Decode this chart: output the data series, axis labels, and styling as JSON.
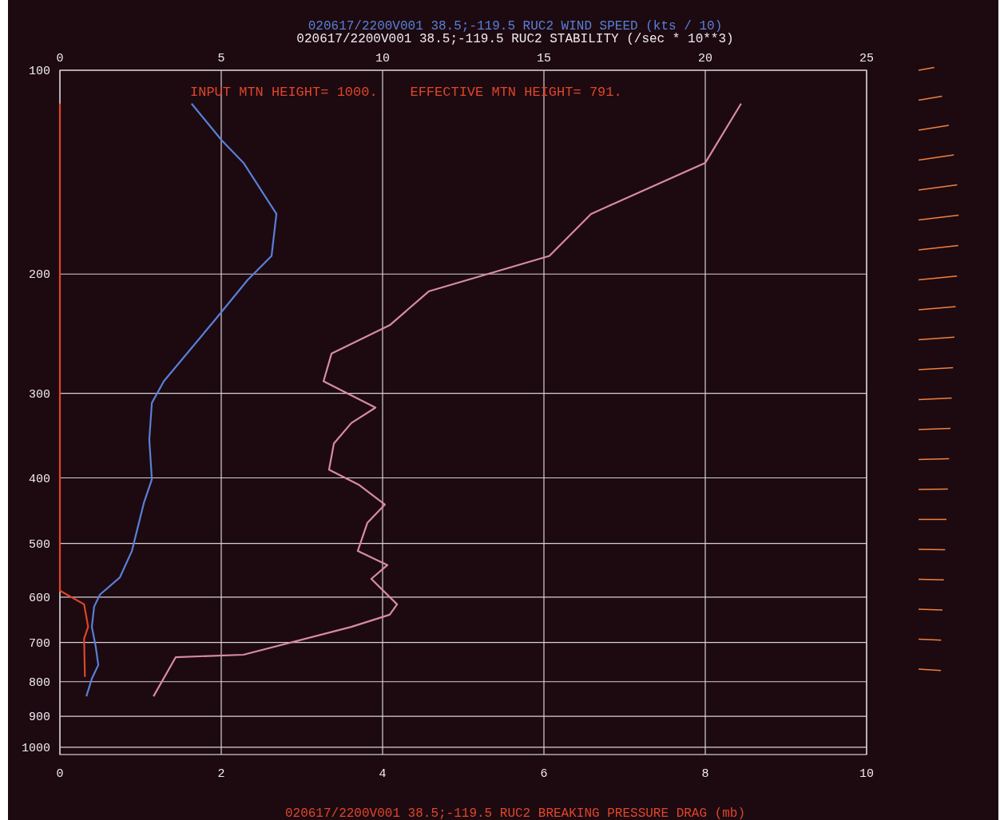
{
  "chart_data": {
    "type": "line",
    "title": "020617/2200V001 38.5;-119.5 RUC2 WIND SPEED (kts / 10)",
    "subtitle": "020617/2200V001 38.5;-119.5 RUC2 STABILITY (/sec * 10**3)",
    "xlabel": "020617/2200V001 38.5;-119.5 RUC2 BREAKING PRESSURE DRAG (mb)",
    "annotations": [
      "INPUT MTN HEIGHT= 1000.    EFFECTIVE MTN HEIGHT= 791."
    ],
    "xlim": [
      0,
      10
    ],
    "xticks": [
      0,
      2,
      4,
      6,
      8,
      10
    ],
    "x2lim": [
      0,
      25
    ],
    "x2ticks": [
      0,
      5,
      10,
      15,
      20,
      25
    ],
    "ylim": [
      1025,
      100
    ],
    "yticks": [
      100,
      200,
      300,
      400,
      500,
      600,
      700,
      800,
      900,
      1000
    ],
    "log": "y",
    "grid": true,
    "series": [
      {
        "color": "#5a7fd8",
        "axis": "x2",
        "x": [
          4.08,
          5.02,
          5.69,
          6.71,
          6.56,
          5.82,
          4.83,
          3.22,
          2.85,
          2.77,
          2.85,
          2.6,
          2.23,
          1.86,
          1.24,
          1.06,
          0.99,
          1.11,
          1.19,
          0.99,
          0.82
        ],
        "values": [
          112,
          127,
          137,
          163,
          188,
          204,
          233,
          288,
          310,
          351,
          402,
          436,
          513,
          561,
          595,
          620,
          664,
          710,
          756,
          792,
          841
        ]
      },
      {
        "color": "#d88aa8",
        "axis": "x2",
        "x": [
          21.11,
          20.0,
          16.46,
          15.17,
          11.44,
          10.22,
          8.42,
          8.17,
          9.78,
          9.03,
          8.49,
          8.34,
          9.28,
          10.07,
          9.53,
          9.23,
          10.15,
          9.65,
          10.45,
          10.22,
          9.03,
          5.69,
          3.59,
          2.9
        ],
        "values": [
          112,
          137,
          163,
          188,
          212,
          238,
          262,
          288,
          315,
          332,
          356,
          389,
          410,
          438,
          466,
          513,
          538,
          564,
          615,
          637,
          664,
          730,
          736,
          841
        ]
      },
      {
        "color": "#e0452a",
        "x": [
          0,
          0,
          0.3,
          0.35,
          0.3,
          0.31
        ],
        "values": [
          112,
          587,
          615,
          664,
          691,
          787
        ]
      }
    ]
  }
}
